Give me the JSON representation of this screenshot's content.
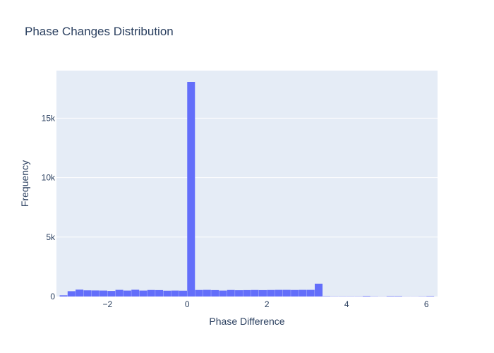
{
  "chart_data": {
    "type": "bar",
    "title": "Phase Changes Distribution",
    "xlabel": "Phase Difference",
    "ylabel": "Frequency",
    "xlim": [
      -3.28,
      6.28
    ],
    "ylim": [
      0,
      19000
    ],
    "x_ticks": [
      {
        "value": -2,
        "label": "−2"
      },
      {
        "value": 0,
        "label": "0"
      },
      {
        "value": 2,
        "label": "2"
      },
      {
        "value": 4,
        "label": "4"
      },
      {
        "value": 6,
        "label": "6"
      }
    ],
    "y_ticks": [
      {
        "value": 0,
        "label": "0"
      },
      {
        "value": 5000,
        "label": "5k"
      },
      {
        "value": 10000,
        "label": "10k"
      },
      {
        "value": 15000,
        "label": "15k"
      }
    ],
    "bin_width": 0.2,
    "bins_start": [
      -3.2,
      -3.0,
      -2.8,
      -2.6,
      -2.4,
      -2.2,
      -2.0,
      -1.8,
      -1.6,
      -1.4,
      -1.2,
      -1.0,
      -0.8,
      -0.6,
      -0.4,
      -0.2,
      0.0,
      0.2,
      0.4,
      0.6,
      0.8,
      1.0,
      1.2,
      1.4,
      1.6,
      1.8,
      2.0,
      2.2,
      2.4,
      2.6,
      2.8,
      3.0,
      3.2,
      3.4,
      3.6,
      3.8,
      4.0,
      4.2,
      4.4,
      4.6,
      4.8,
      5.0,
      5.2,
      5.4,
      5.6,
      5.8,
      6.0
    ],
    "values": [
      100,
      450,
      580,
      520,
      510,
      500,
      470,
      560,
      500,
      570,
      500,
      550,
      540,
      490,
      500,
      490,
      18050,
      550,
      560,
      540,
      500,
      550,
      530,
      540,
      550,
      540,
      550,
      560,
      560,
      550,
      560,
      560,
      1080,
      30,
      20,
      20,
      20,
      20,
      50,
      20,
      10,
      40,
      40,
      10,
      10,
      20,
      40
    ],
    "bar_color": "#636efa",
    "plot_bg_color": "#e5ecf6",
    "grid": true
  }
}
